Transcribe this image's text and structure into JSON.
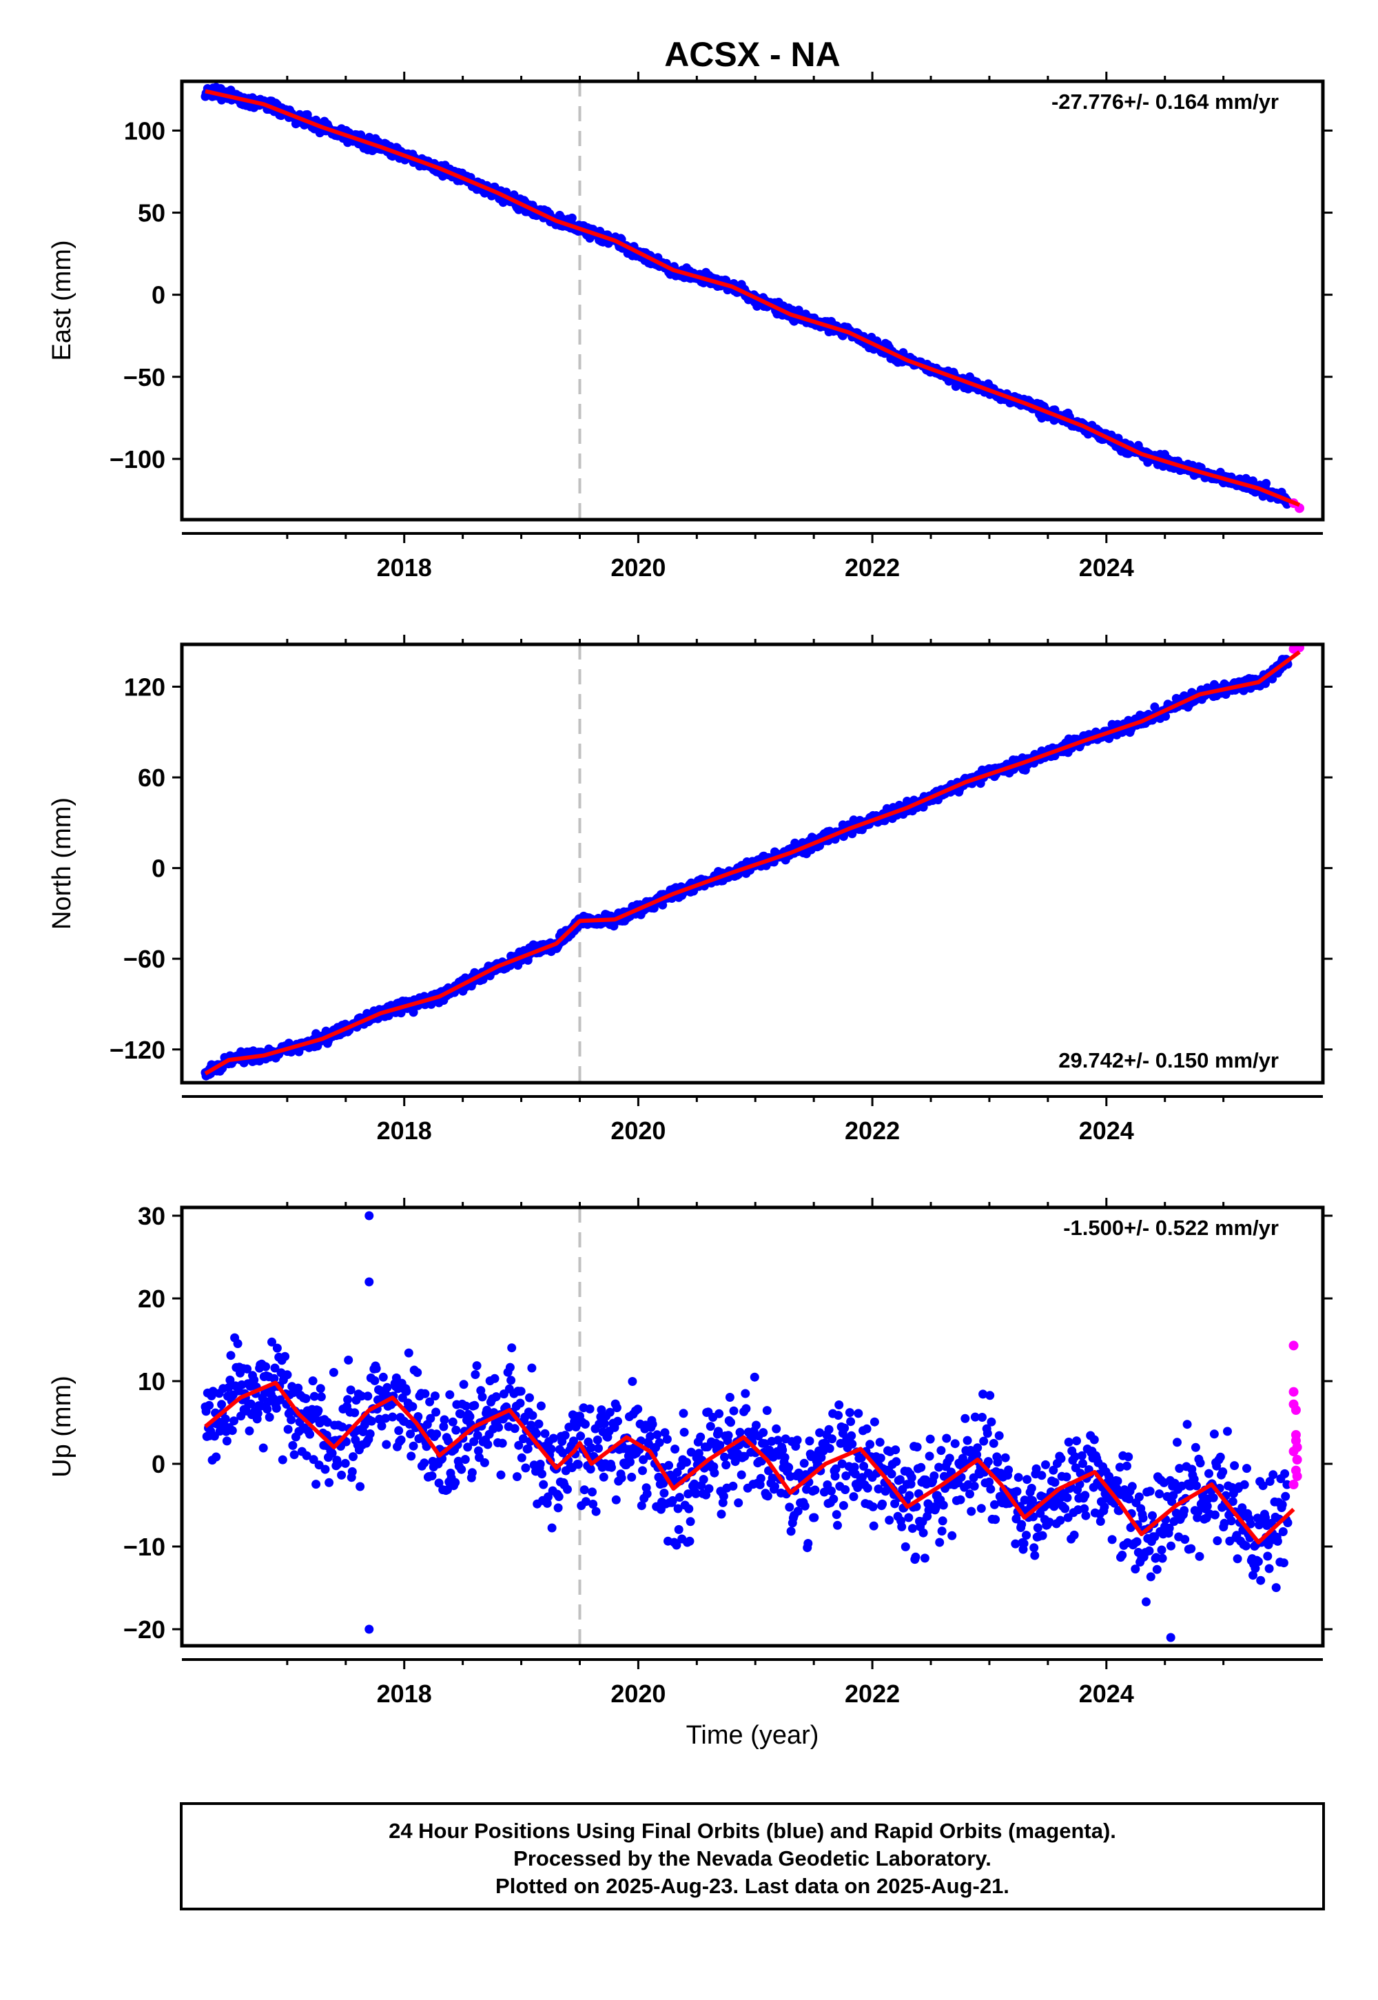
{
  "title": "ACSX - NA",
  "footer": {
    "line1": "24 Hour Positions Using Final Orbits (blue) and Rapid Orbits (magenta).",
    "line2": "Processed by the Nevada Geodetic Laboratory.",
    "line3": "Plotted on 2025-Aug-23. Last data on 2025-Aug-21."
  },
  "colors": {
    "final_points": "#0000ff",
    "rapid_points": "#ff00ff",
    "model_line": "#ff0000",
    "event_line": "#c0c0c0"
  },
  "chart_data": [
    {
      "type": "scatter",
      "component": "east",
      "ylabel": "East (mm)",
      "xlabel": "",
      "xlim": [
        2016.1,
        2025.85
      ],
      "ylim": [
        -137,
        130
      ],
      "yticks": [
        -100,
        -50,
        0,
        50,
        100
      ],
      "xticks": [
        2018,
        2020,
        2022,
        2024
      ],
      "event_line_x": 2019.5,
      "rate_label": "-27.776+/- 0.164 mm/yr",
      "rate_position": "top-right",
      "model": {
        "x": [
          2016.3,
          2016.8,
          2017.3,
          2017.8,
          2018.3,
          2018.8,
          2019.3,
          2019.8,
          2020.3,
          2020.8,
          2021.3,
          2021.8,
          2022.3,
          2022.8,
          2023.3,
          2023.8,
          2024.3,
          2024.8,
          2025.3,
          2025.65
        ],
        "y": [
          124,
          116,
          102,
          90,
          77,
          62,
          45,
          33,
          15,
          5,
          -12,
          -23,
          -40,
          -53,
          -66,
          -80,
          -97,
          -108,
          -118,
          -128
        ]
      },
      "rapid": {
        "x": [
          2025.6,
          2025.65
        ],
        "y": [
          -127,
          -130
        ]
      },
      "noise_mm": 1.8
    },
    {
      "type": "scatter",
      "component": "north",
      "ylabel": "North (mm)",
      "xlabel": "",
      "xlim": [
        2016.1,
        2025.85
      ],
      "ylim": [
        -142,
        148
      ],
      "yticks": [
        -120,
        -60,
        0,
        60,
        120
      ],
      "xticks": [
        2018,
        2020,
        2022,
        2024
      ],
      "event_line_x": 2019.5,
      "rate_label": "29.742+/- 0.150 mm/yr",
      "rate_position": "bottom-right",
      "model": {
        "x": [
          2016.3,
          2016.5,
          2016.8,
          2017.3,
          2017.8,
          2018.3,
          2018.8,
          2019.3,
          2019.5,
          2019.8,
          2020.3,
          2020.8,
          2021.3,
          2021.8,
          2022.3,
          2022.8,
          2023.3,
          2023.8,
          2024.3,
          2024.8,
          2025.3,
          2025.65
        ],
        "y": [
          -136,
          -127,
          -124,
          -113,
          -96,
          -85,
          -65,
          -50,
          -35,
          -34,
          -17,
          -3,
          10,
          26,
          40,
          57,
          70,
          84,
          97,
          115,
          123,
          143
        ]
      },
      "rapid": {
        "x": [
          2025.6,
          2025.65
        ],
        "y": [
          145,
          146
        ]
      },
      "noise_mm": 2.0
    },
    {
      "type": "scatter",
      "component": "up",
      "ylabel": "Up (mm)",
      "xlabel": "Time (year)",
      "xlim": [
        2016.1,
        2025.85
      ],
      "ylim": [
        -22,
        31
      ],
      "yticks": [
        -20,
        -10,
        0,
        10,
        20,
        30
      ],
      "xticks": [
        2018,
        2020,
        2022,
        2024
      ],
      "event_line_x": 2019.5,
      "rate_label": "-1.500+/- 0.522 mm/yr",
      "rate_position": "top-right",
      "model": {
        "x": [
          2016.3,
          2016.6,
          2016.9,
          2017.1,
          2017.4,
          2017.7,
          2017.9,
          2018.1,
          2018.3,
          2018.6,
          2018.9,
          2019.1,
          2019.3,
          2019.45,
          2019.5,
          2019.6,
          2019.9,
          2020.1,
          2020.3,
          2020.6,
          2020.9,
          2021.1,
          2021.3,
          2021.6,
          2021.9,
          2022.1,
          2022.3,
          2022.6,
          2022.9,
          2023.1,
          2023.3,
          2023.6,
          2023.9,
          2024.1,
          2024.3,
          2024.6,
          2024.9,
          2025.1,
          2025.3,
          2025.6
        ],
        "y": [
          4.5,
          8,
          9.8,
          6,
          2,
          6.5,
          8,
          5,
          1,
          4.5,
          6.5,
          3,
          -0.5,
          1.5,
          2.5,
          0,
          3.2,
          1.5,
          -3,
          0.5,
          3.2,
          0.5,
          -3.5,
          0,
          1.8,
          -1.5,
          -5.2,
          -2.5,
          0.5,
          -2.5,
          -6.5,
          -3,
          -1,
          -4.5,
          -8.5,
          -5,
          -2.5,
          -6,
          -9.5,
          -5.5
        ]
      },
      "rapid": {
        "x": [
          2025.6,
          2025.6,
          2025.6,
          2025.62,
          2025.62,
          2025.62,
          2025.6,
          2025.63,
          2025.63,
          2025.6,
          2025.62,
          2025.63
        ],
        "y": [
          14.3,
          8.7,
          7.2,
          6.5,
          3.5,
          2.8,
          1.5,
          0.5,
          -1.5,
          -2.5,
          -0.8,
          2.0
        ]
      },
      "noise_mm": 3.2,
      "outliers": {
        "x": [
          2017.7,
          2017.7,
          2017.7,
          2024.55
        ],
        "y": [
          30,
          22,
          -20,
          -21
        ]
      }
    }
  ]
}
